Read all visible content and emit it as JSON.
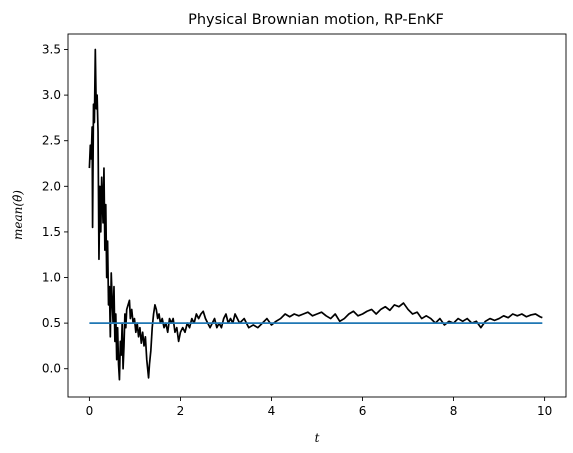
{
  "chart_data": {
    "type": "line",
    "title": "Physical Brownian motion, RP-EnKF",
    "xlabel": "t",
    "ylabel": "mean(θ̂)",
    "xlim": [
      -0.47,
      10.47
    ],
    "ylim": [
      -0.31,
      3.67
    ],
    "xticks": [
      0,
      2,
      4,
      6,
      8,
      10
    ],
    "yticks": [
      0.0,
      0.5,
      1.0,
      1.5,
      2.0,
      2.5,
      3.0,
      3.5
    ],
    "grid": false,
    "legend": "none",
    "series": [
      {
        "color": "#000000",
        "points": [
          [
            0.0,
            2.2
          ],
          [
            0.02,
            2.45
          ],
          [
            0.04,
            2.3
          ],
          [
            0.06,
            2.65
          ],
          [
            0.07,
            1.55
          ],
          [
            0.09,
            2.9
          ],
          [
            0.11,
            2.7
          ],
          [
            0.13,
            3.5
          ],
          [
            0.15,
            2.85
          ],
          [
            0.17,
            3.0
          ],
          [
            0.19,
            2.6
          ],
          [
            0.21,
            1.2
          ],
          [
            0.23,
            2.0
          ],
          [
            0.25,
            1.5
          ],
          [
            0.27,
            2.1
          ],
          [
            0.3,
            1.6
          ],
          [
            0.32,
            2.2
          ],
          [
            0.34,
            1.3
          ],
          [
            0.36,
            1.8
          ],
          [
            0.38,
            1.0
          ],
          [
            0.4,
            1.4
          ],
          [
            0.42,
            0.7
          ],
          [
            0.44,
            0.9
          ],
          [
            0.46,
            0.35
          ],
          [
            0.48,
            1.05
          ],
          [
            0.5,
            0.75
          ],
          [
            0.52,
            0.5
          ],
          [
            0.54,
            0.9
          ],
          [
            0.56,
            0.3
          ],
          [
            0.58,
            0.6
          ],
          [
            0.6,
            0.1
          ],
          [
            0.62,
            0.45
          ],
          [
            0.64,
            0.05
          ],
          [
            0.66,
            -0.12
          ],
          [
            0.68,
            0.3
          ],
          [
            0.7,
            0.15
          ],
          [
            0.72,
            0.5
          ],
          [
            0.74,
            0.0
          ],
          [
            0.76,
            0.25
          ],
          [
            0.78,
            0.6
          ],
          [
            0.8,
            0.45
          ],
          [
            0.82,
            0.65
          ],
          [
            0.85,
            0.7
          ],
          [
            0.88,
            0.75
          ],
          [
            0.9,
            0.55
          ],
          [
            0.93,
            0.65
          ],
          [
            0.96,
            0.5
          ],
          [
            0.99,
            0.55
          ],
          [
            1.02,
            0.4
          ],
          [
            1.05,
            0.5
          ],
          [
            1.08,
            0.35
          ],
          [
            1.11,
            0.45
          ],
          [
            1.14,
            0.28
          ],
          [
            1.17,
            0.4
          ],
          [
            1.2,
            0.25
          ],
          [
            1.23,
            0.35
          ],
          [
            1.26,
            0.1
          ],
          [
            1.28,
            0.0
          ],
          [
            1.3,
            -0.1
          ],
          [
            1.32,
            0.05
          ],
          [
            1.35,
            0.2
          ],
          [
            1.38,
            0.45
          ],
          [
            1.41,
            0.6
          ],
          [
            1.44,
            0.7
          ],
          [
            1.47,
            0.65
          ],
          [
            1.5,
            0.55
          ],
          [
            1.53,
            0.6
          ],
          [
            1.56,
            0.5
          ],
          [
            1.6,
            0.55
          ],
          [
            1.64,
            0.45
          ],
          [
            1.68,
            0.5
          ],
          [
            1.72,
            0.4
          ],
          [
            1.76,
            0.55
          ],
          [
            1.8,
            0.5
          ],
          [
            1.84,
            0.55
          ],
          [
            1.88,
            0.4
          ],
          [
            1.92,
            0.45
          ],
          [
            1.96,
            0.3
          ],
          [
            2.0,
            0.4
          ],
          [
            2.05,
            0.45
          ],
          [
            2.1,
            0.4
          ],
          [
            2.15,
            0.5
          ],
          [
            2.2,
            0.45
          ],
          [
            2.25,
            0.55
          ],
          [
            2.3,
            0.5
          ],
          [
            2.35,
            0.6
          ],
          [
            2.4,
            0.55
          ],
          [
            2.45,
            0.6
          ],
          [
            2.5,
            0.63
          ],
          [
            2.55,
            0.55
          ],
          [
            2.6,
            0.5
          ],
          [
            2.65,
            0.45
          ],
          [
            2.7,
            0.5
          ],
          [
            2.75,
            0.55
          ],
          [
            2.8,
            0.45
          ],
          [
            2.85,
            0.5
          ],
          [
            2.9,
            0.45
          ],
          [
            2.95,
            0.55
          ],
          [
            3.0,
            0.6
          ],
          [
            3.05,
            0.5
          ],
          [
            3.1,
            0.55
          ],
          [
            3.15,
            0.5
          ],
          [
            3.2,
            0.6
          ],
          [
            3.25,
            0.55
          ],
          [
            3.3,
            0.5
          ],
          [
            3.4,
            0.55
          ],
          [
            3.5,
            0.45
          ],
          [
            3.6,
            0.48
          ],
          [
            3.7,
            0.45
          ],
          [
            3.8,
            0.5
          ],
          [
            3.9,
            0.55
          ],
          [
            4.0,
            0.48
          ],
          [
            4.1,
            0.52
          ],
          [
            4.2,
            0.55
          ],
          [
            4.3,
            0.6
          ],
          [
            4.4,
            0.57
          ],
          [
            4.5,
            0.6
          ],
          [
            4.6,
            0.58
          ],
          [
            4.7,
            0.6
          ],
          [
            4.8,
            0.62
          ],
          [
            4.9,
            0.58
          ],
          [
            5.0,
            0.6
          ],
          [
            5.1,
            0.62
          ],
          [
            5.2,
            0.58
          ],
          [
            5.3,
            0.55
          ],
          [
            5.4,
            0.6
          ],
          [
            5.5,
            0.52
          ],
          [
            5.6,
            0.55
          ],
          [
            5.7,
            0.6
          ],
          [
            5.8,
            0.63
          ],
          [
            5.9,
            0.58
          ],
          [
            6.0,
            0.6
          ],
          [
            6.1,
            0.63
          ],
          [
            6.2,
            0.65
          ],
          [
            6.3,
            0.6
          ],
          [
            6.4,
            0.65
          ],
          [
            6.5,
            0.68
          ],
          [
            6.6,
            0.64
          ],
          [
            6.7,
            0.7
          ],
          [
            6.8,
            0.68
          ],
          [
            6.9,
            0.72
          ],
          [
            7.0,
            0.65
          ],
          [
            7.1,
            0.6
          ],
          [
            7.2,
            0.62
          ],
          [
            7.3,
            0.55
          ],
          [
            7.4,
            0.58
          ],
          [
            7.5,
            0.55
          ],
          [
            7.6,
            0.5
          ],
          [
            7.7,
            0.55
          ],
          [
            7.8,
            0.48
          ],
          [
            7.9,
            0.52
          ],
          [
            8.0,
            0.5
          ],
          [
            8.1,
            0.55
          ],
          [
            8.2,
            0.52
          ],
          [
            8.3,
            0.55
          ],
          [
            8.4,
            0.5
          ],
          [
            8.5,
            0.52
          ],
          [
            8.6,
            0.45
          ],
          [
            8.7,
            0.52
          ],
          [
            8.8,
            0.55
          ],
          [
            8.9,
            0.53
          ],
          [
            9.0,
            0.55
          ],
          [
            9.1,
            0.58
          ],
          [
            9.2,
            0.56
          ],
          [
            9.3,
            0.6
          ],
          [
            9.4,
            0.58
          ],
          [
            9.5,
            0.6
          ],
          [
            9.6,
            0.57
          ],
          [
            9.7,
            0.59
          ],
          [
            9.8,
            0.6
          ],
          [
            9.9,
            0.57
          ],
          [
            9.95,
            0.56
          ]
        ]
      },
      {
        "color": "#1f77b4",
        "points": [
          [
            0.0,
            0.5
          ],
          [
            9.95,
            0.5
          ]
        ]
      }
    ]
  }
}
